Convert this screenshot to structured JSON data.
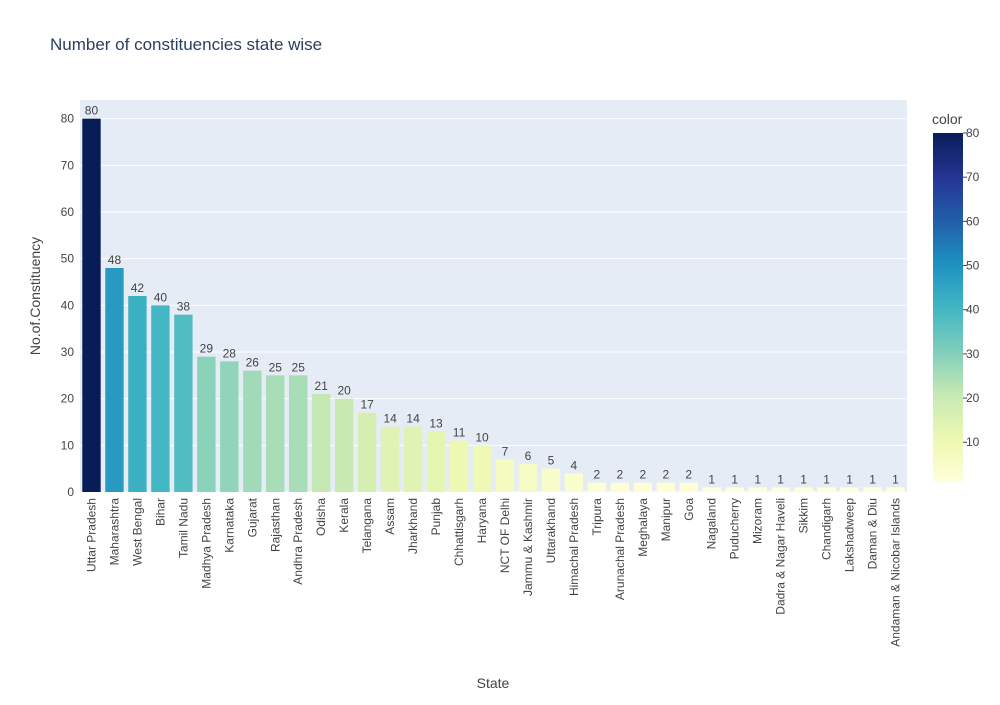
{
  "chart_data": {
    "type": "bar",
    "title": "Number of constituencies state wise",
    "xlabel": "State",
    "ylabel": "No.of.Constituency",
    "ylim": [
      0,
      84
    ],
    "yticks": [
      0,
      10,
      20,
      30,
      40,
      50,
      60,
      70,
      80
    ],
    "grid": true,
    "categories": [
      "Uttar Pradesh",
      "Maharashtra",
      "West Bengal",
      "Bihar",
      "Tamil Nadu",
      "Madhya Pradesh",
      "Karnataka",
      "Gujarat",
      "Rajasthan",
      "Andhra Pradesh",
      "Odisha",
      "Kerala",
      "Telangana",
      "Assam",
      "Jharkhand",
      "Punjab",
      "Chhattisgarh",
      "Haryana",
      "NCT OF Delhi",
      "Jammu & Kashmir",
      "Uttarakhand",
      "Himachal Pradesh",
      "Tripura",
      "Arunachal Pradesh",
      "Meghalaya",
      "Manipur",
      "Goa",
      "Nagaland",
      "Puducherry",
      "Mizoram",
      "Dadra & Nagar Haveli",
      "Sikkim",
      "Chandigarh",
      "Lakshadweep",
      "Daman & Diu",
      "Andaman & Nicobar Islands"
    ],
    "values": [
      80,
      48,
      42,
      40,
      38,
      29,
      28,
      26,
      25,
      25,
      21,
      20,
      17,
      14,
      14,
      13,
      11,
      10,
      7,
      6,
      5,
      4,
      2,
      2,
      2,
      2,
      2,
      1,
      1,
      1,
      1,
      1,
      1,
      1,
      1,
      1
    ],
    "colorbar": {
      "title": "color",
      "ticks": [
        10,
        20,
        30,
        40,
        50,
        60,
        70,
        80
      ],
      "range": [
        1,
        80
      ],
      "colorscale": [
        "#ffffd9",
        "#edf8b1",
        "#c7e9b4",
        "#7fcdbb",
        "#41b6c4",
        "#1d91c0",
        "#225ea8",
        "#253494",
        "#081d58"
      ]
    },
    "colors": {
      "plot_bg": "#e5ecf6",
      "grid": "#ffffff",
      "text": "#444444",
      "title": "#2a3f5f"
    }
  }
}
